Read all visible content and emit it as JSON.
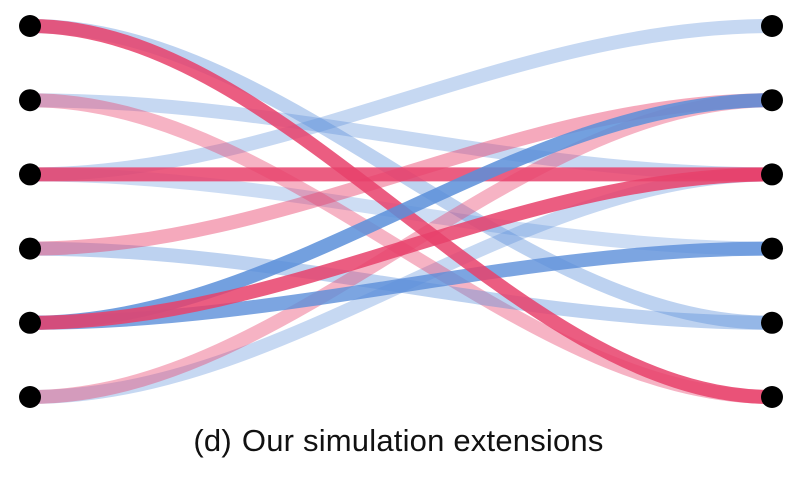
{
  "caption": {
    "label": "(d)",
    "text": "Our simulation extensions"
  },
  "colors": {
    "red": "#e8416b",
    "blue": "#5b8fd9",
    "node": "#000000",
    "background": "#ffffff"
  },
  "left_nodes": 6,
  "right_nodes": 6,
  "connections": [
    {
      "from": 0,
      "to": 5,
      "color": "red",
      "opacity": 0.85
    },
    {
      "from": 0,
      "to": 4,
      "color": "blue",
      "opacity": 0.4
    },
    {
      "from": 1,
      "to": 2,
      "color": "blue",
      "opacity": 0.35
    },
    {
      "from": 1,
      "to": 5,
      "color": "red",
      "opacity": 0.4
    },
    {
      "from": 2,
      "to": 3,
      "color": "blue",
      "opacity": 0.3
    },
    {
      "from": 2,
      "to": 0,
      "color": "blue",
      "opacity": 0.35
    },
    {
      "from": 2,
      "to": 2,
      "color": "red",
      "opacity": 0.85
    },
    {
      "from": 3,
      "to": 1,
      "color": "red",
      "opacity": 0.45
    },
    {
      "from": 3,
      "to": 4,
      "color": "blue",
      "opacity": 0.4
    },
    {
      "from": 4,
      "to": 1,
      "color": "blue",
      "opacity": 0.85
    },
    {
      "from": 4,
      "to": 2,
      "color": "red",
      "opacity": 0.85
    },
    {
      "from": 4,
      "to": 3,
      "color": "blue",
      "opacity": 0.8
    },
    {
      "from": 5,
      "to": 1,
      "color": "red",
      "opacity": 0.4
    },
    {
      "from": 5,
      "to": 2,
      "color": "blue",
      "opacity": 0.35
    }
  ]
}
